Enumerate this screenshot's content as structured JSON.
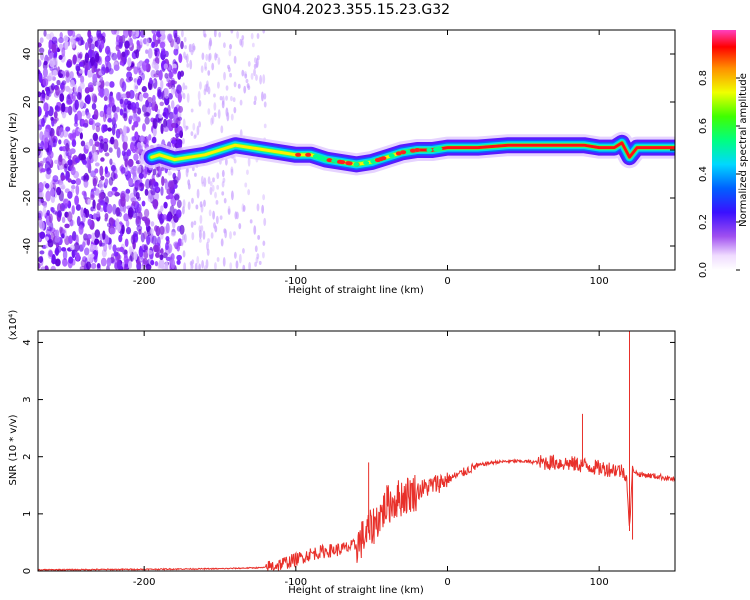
{
  "title": "GN04.2023.355.15.23.G32",
  "chart_data": [
    {
      "type": "heatmap",
      "xlabel": "Height of straight line (km)",
      "ylabel": "Frequency (Hz)",
      "xlim": [
        -270,
        150
      ],
      "ylim": [
        -50,
        50
      ],
      "xticks": [
        -200,
        -100,
        0,
        100
      ],
      "yticks": [
        -40,
        -20,
        0,
        20,
        40
      ],
      "colorbar": {
        "label": "Normalized spectral amplitude",
        "range": [
          0,
          1
        ],
        "ticks": [
          "0.0",
          "0.2",
          "0.4",
          "0.6",
          "0.8"
        ]
      },
      "ridge": {
        "x": [
          -195,
          -190,
          -180,
          -170,
          -160,
          -150,
          -140,
          -130,
          -120,
          -110,
          -100,
          -90,
          -80,
          -70,
          -60,
          -50,
          -45,
          -40,
          -30,
          -20,
          -10,
          0,
          20,
          40,
          60,
          80,
          90,
          100,
          110,
          115,
          120,
          125,
          130,
          150
        ],
        "y": [
          -3,
          -2,
          -4,
          -3,
          -2,
          0,
          2,
          1,
          0,
          -1,
          -2,
          -2,
          -4,
          -5,
          -6,
          -5,
          -4,
          -3,
          -1,
          0,
          0,
          1,
          1,
          2,
          2,
          2,
          2,
          1,
          1,
          3,
          -3,
          1,
          1,
          1
        ]
      },
      "noise_region_x": [
        -270,
        -175
      ]
    },
    {
      "type": "line",
      "xlabel": "Height of straight line (km)",
      "ylabel": "SNR (10 * v/v)",
      "y_scale_label": "(x10⁴)",
      "xlim": [
        -270,
        150
      ],
      "ylim": [
        0,
        4.2
      ],
      "xticks": [
        -200,
        -100,
        0,
        100
      ],
      "yticks": [
        0,
        1,
        2,
        3,
        4
      ],
      "color": "#e8302a",
      "series": [
        {
          "x": [
            -270,
            -200,
            -150,
            -120,
            -110,
            -100,
            -90,
            -80,
            -70,
            -60,
            -50,
            -40,
            -30,
            -20,
            -10,
            0,
            10,
            20,
            30,
            40,
            50,
            60,
            70,
            80,
            90,
            100,
            110,
            115,
            118,
            120,
            122,
            125,
            130,
            140,
            150
          ],
          "y": [
            0.02,
            0.03,
            0.04,
            0.06,
            0.12,
            0.2,
            0.3,
            0.35,
            0.38,
            0.45,
            0.75,
            1.15,
            1.3,
            1.4,
            1.5,
            1.6,
            1.72,
            1.85,
            1.9,
            1.92,
            1.92,
            1.9,
            1.9,
            1.88,
            1.85,
            1.8,
            1.78,
            1.75,
            1.7,
            0.7,
            1.8,
            1.7,
            1.68,
            1.65,
            1.6
          ]
        }
      ],
      "spikes": [
        {
          "x": -52,
          "y": 1.9
        },
        {
          "x": -40,
          "y": 1.5
        },
        {
          "x": 89,
          "y": 2.75
        },
        {
          "x": 120,
          "y": 4.2
        },
        {
          "x": 122,
          "y": 0.55
        }
      ]
    }
  ]
}
